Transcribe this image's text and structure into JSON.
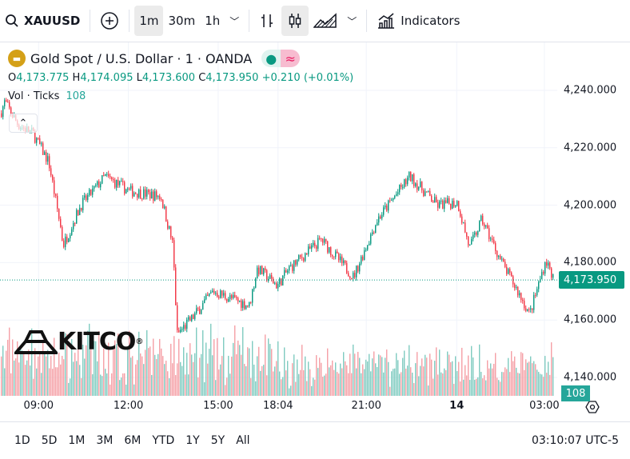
{
  "toolbar": {
    "symbol": "XAUUSD",
    "intervals": [
      "1m",
      "30m",
      "1h"
    ],
    "active_interval": "1m",
    "indicators_label": "Indicators"
  },
  "legend": {
    "title": "Gold Spot / U.S. Dollar · 1 · OANDA",
    "o_label": "O",
    "o": "4,173.775",
    "h_label": "H",
    "h": "4,174.095",
    "l_label": "L",
    "l": "4,173.600",
    "c_label": "C",
    "c": "4,173.950",
    "change": "+0.210 (+0.01%)",
    "vol_label": "Vol · Ticks",
    "vol_value": "108"
  },
  "watermark": "KITCO",
  "colors": {
    "up": "#089981",
    "down": "#f23645",
    "up_vol": "#7fcbc0",
    "down_vol": "#f5a0a6"
  },
  "chart_data": {
    "type": "candlestick",
    "x_unit": "hours (session axis)",
    "xlim": [
      7.71,
      26.33
    ],
    "ylim": [
      4140,
      4250
    ],
    "price_ticks": [
      "4,240.000",
      "4,220.000",
      "4,200.000",
      "4,180.000",
      "4,160.000",
      "4,140.000"
    ],
    "price_tick_values": [
      4240,
      4220,
      4200,
      4180,
      4160,
      4140
    ],
    "current_price": "4,173.950",
    "current_price_value": 4173.95,
    "current_volume": "108",
    "time_ticks": [
      {
        "label": "09:00",
        "x": 9
      },
      {
        "label": "12:00",
        "x": 12
      },
      {
        "label": "15:00",
        "x": 15
      },
      {
        "label": "18:04",
        "x": 17.0
      },
      {
        "label": "21:00",
        "x": 19.95
      },
      {
        "label": "14",
        "x": 22.97,
        "bold": true
      },
      {
        "label": "03:00",
        "x": 25.9
      }
    ],
    "price_path": [
      [
        7.71,
        4232
      ],
      [
        7.85,
        4236
      ],
      [
        8.3,
        4228
      ],
      [
        8.79,
        4225
      ],
      [
        9.32,
        4215
      ],
      [
        9.72,
        4192
      ],
      [
        9.8,
        4186
      ],
      [
        10.39,
        4200
      ],
      [
        11.2,
        4210
      ],
      [
        12.0,
        4205
      ],
      [
        13.07,
        4203
      ],
      [
        13.47,
        4186
      ],
      [
        13.61,
        4155
      ],
      [
        14.14,
        4161
      ],
      [
        14.81,
        4170
      ],
      [
        16.02,
        4165
      ],
      [
        16.29,
        4178
      ],
      [
        16.96,
        4172
      ],
      [
        17.36,
        4178
      ],
      [
        18.43,
        4188
      ],
      [
        19.5,
        4175
      ],
      [
        20.3,
        4195
      ],
      [
        21.38,
        4210
      ],
      [
        22.31,
        4200
      ],
      [
        22.98,
        4201
      ],
      [
        23.38,
        4185
      ],
      [
        23.79,
        4195
      ],
      [
        24.46,
        4180
      ],
      [
        24.99,
        4170
      ],
      [
        25.39,
        4162
      ],
      [
        25.93,
        4181
      ],
      [
        26.2,
        4174
      ]
    ]
  },
  "bottom": {
    "ranges": [
      "1D",
      "5D",
      "1M",
      "3M",
      "6M",
      "YTD",
      "1Y",
      "5Y",
      "All"
    ],
    "clock": "03:10:07 UTC-5"
  }
}
